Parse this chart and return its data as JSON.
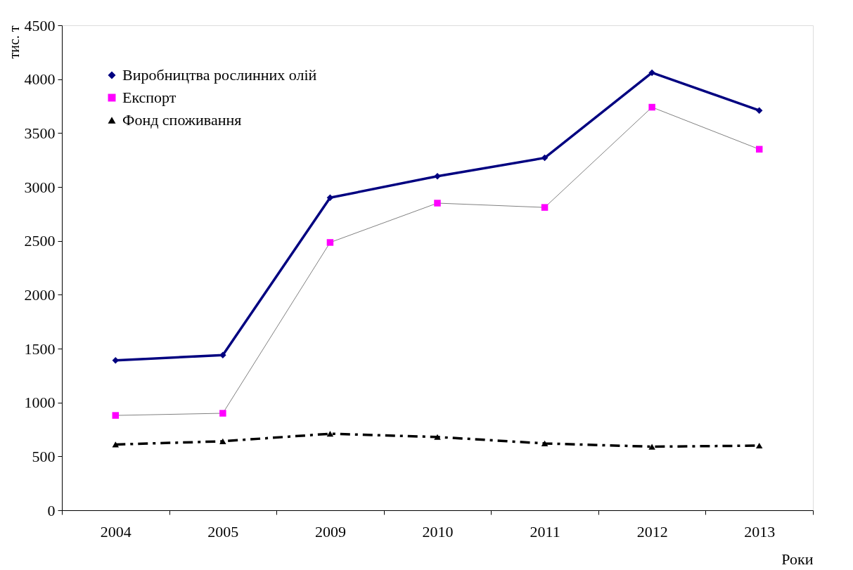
{
  "chart_data": {
    "type": "line",
    "categories": [
      "2004",
      "2005",
      "2009",
      "2010",
      "2011",
      "2012",
      "2013"
    ],
    "series": [
      {
        "name": "Виробництва рослинних олій",
        "color": "#000080",
        "marker": "diamond",
        "line_style": "solid",
        "values": [
          1390,
          1440,
          2900,
          3100,
          3270,
          4060,
          3710
        ]
      },
      {
        "name": "Експорт",
        "color": "#ff00ff",
        "marker": "square",
        "line_style": "solid",
        "values": [
          880,
          900,
          2485,
          2850,
          2810,
          3740,
          3350
        ]
      },
      {
        "name": "Фонд споживання",
        "color": "#000000",
        "marker": "triangle",
        "line_style": "dashed",
        "values": [
          610,
          640,
          710,
          680,
          620,
          590,
          600
        ]
      }
    ],
    "xlabel": "Роки",
    "ylabel": "тис. т",
    "ylim": [
      0,
      4500
    ],
    "yticks": [
      0,
      500,
      1000,
      1500,
      2000,
      2500,
      3000,
      3500,
      4000,
      4500
    ],
    "grid": false,
    "legend": "top left"
  }
}
